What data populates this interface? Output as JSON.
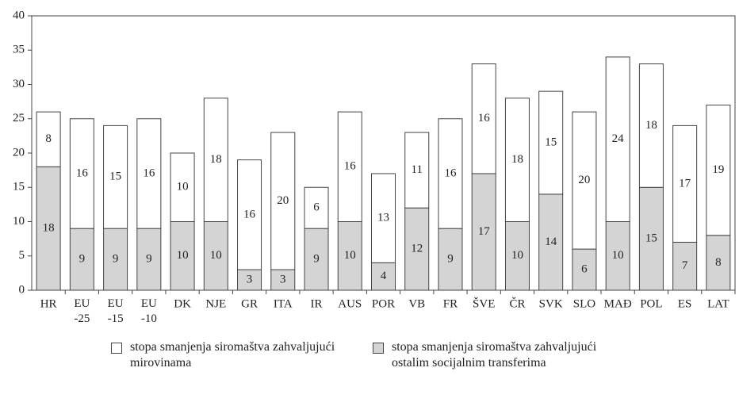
{
  "chart_data": {
    "type": "stacked_bar",
    "categories": [
      "HR",
      "EU -25",
      "EU -15",
      "EU -10",
      "DK",
      "NJE",
      "GR",
      "ITA",
      "IR",
      "AUS",
      "POR",
      "VB",
      "FR",
      "ŠVE",
      "ČR",
      "SVK",
      "SLO",
      "MAĐ",
      "POL",
      "ES",
      "LAT"
    ],
    "series": [
      {
        "name": "stopa smanjenja siromaštva zahvaljujući mirovinama",
        "color": "#ffffff",
        "values": [
          8,
          16,
          15,
          16,
          10,
          18,
          16,
          20,
          6,
          16,
          13,
          11,
          16,
          16,
          18,
          15,
          20,
          24,
          18,
          17,
          19
        ]
      },
      {
        "name": "stopa smanjenja siromaštva zahvaljujući ostalim socijalnim transferima",
        "color": "#d4d4d4",
        "values": [
          18,
          9,
          9,
          9,
          10,
          10,
          3,
          3,
          9,
          10,
          4,
          12,
          9,
          17,
          10,
          14,
          6,
          10,
          15,
          7,
          8
        ]
      }
    ],
    "ylim": [
      0,
      40
    ],
    "yticks": [
      0,
      5,
      10,
      15,
      20,
      25,
      30,
      35,
      40
    ],
    "grid": false
  }
}
